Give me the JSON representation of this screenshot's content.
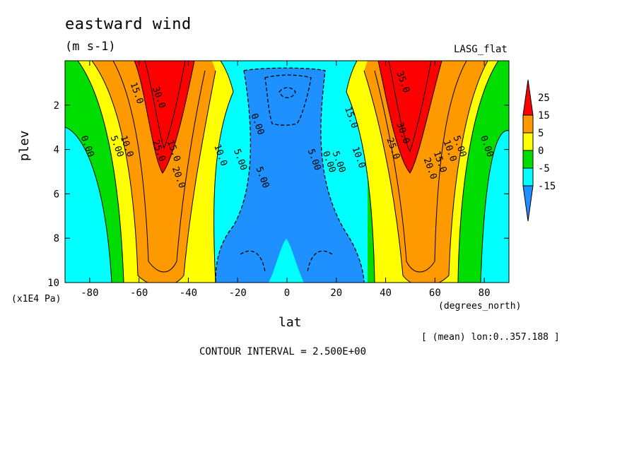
{
  "chart_data": {
    "type": "heatmap",
    "title": "eastward wind",
    "units": "(m s-1)",
    "model": "LASG_flat",
    "xlabel": "lat",
    "x_units": "(degrees_north)",
    "ylabel": "plev",
    "y_multiplier": "(x1E4 Pa)",
    "averaging_note": "[ (mean) lon:0..357.188 ]",
    "contour_interval_text": "CONTOUR INTERVAL = 2.500E+00",
    "xlim": [
      -90,
      90
    ],
    "ylim": [
      0,
      10
    ],
    "y_inverted": true,
    "x_ticks": [
      -80,
      -60,
      -40,
      -20,
      0,
      20,
      40,
      60,
      80
    ],
    "y_ticks": [
      2,
      4,
      6,
      8,
      10
    ],
    "colorbar": {
      "labels": [
        "25",
        "15",
        "5",
        "0",
        "-5",
        "-15"
      ],
      "colors": [
        "#ff0000",
        "#ff9900",
        "#ffff00",
        "#00dd00",
        "#00ffff",
        "#1e90ff"
      ]
    },
    "contour_labels": [
      {
        "text": "15.0",
        "lat": -62,
        "plev": 1.5
      },
      {
        "text": "30.0",
        "lat": -53,
        "plev": 1.7
      },
      {
        "text": "0.00",
        "lat": -82,
        "plev": 3.9
      },
      {
        "text": "5.00",
        "lat": -70,
        "plev": 3.9
      },
      {
        "text": "10.0",
        "lat": -66,
        "plev": 3.9
      },
      {
        "text": "25.0",
        "lat": -53,
        "plev": 4.1
      },
      {
        "text": "15.0",
        "lat": -47,
        "plev": 4.1
      },
      {
        "text": "10.0",
        "lat": -28,
        "plev": 4.3
      },
      {
        "text": "5.00",
        "lat": -20,
        "plev": 4.5
      },
      {
        "text": "0.00",
        "lat": -13,
        "plev": 2.9
      },
      {
        "text": "20.0",
        "lat": -45,
        "plev": 5.3
      },
      {
        "text": "5.00",
        "lat": -11,
        "plev": 5.3
      },
      {
        "text": "5.00",
        "lat": 10,
        "plev": 4.5
      },
      {
        "text": "0.00",
        "lat": 16,
        "plev": 4.6
      },
      {
        "text": "5.00",
        "lat": 20,
        "plev": 4.6
      },
      {
        "text": "15.0",
        "lat": 25,
        "plev": 2.6
      },
      {
        "text": "10.0",
        "lat": 28,
        "plev": 4.4
      },
      {
        "text": "35.0",
        "lat": 46,
        "plev": 1.0
      },
      {
        "text": "30.0",
        "lat": 46,
        "plev": 3.3
      },
      {
        "text": "25.0",
        "lat": 42,
        "plev": 4.0
      },
      {
        "text": "20.0",
        "lat": 57,
        "plev": 4.9
      },
      {
        "text": "15.0",
        "lat": 61,
        "plev": 4.6
      },
      {
        "text": "10.0",
        "lat": 65,
        "plev": 4.1
      },
      {
        "text": "5.00",
        "lat": 69,
        "plev": 3.9
      },
      {
        "text": "0.00",
        "lat": 80,
        "plev": 3.9
      }
    ]
  }
}
